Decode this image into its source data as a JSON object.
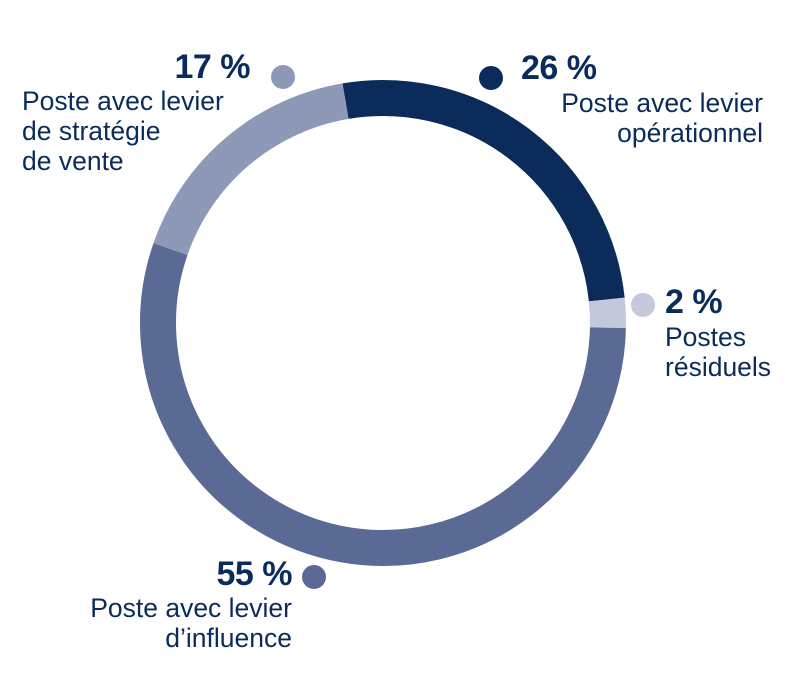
{
  "chart_data": {
    "type": "donut",
    "categories": [
      "Poste avec levier\nopérationnel",
      "Postes\nrésiduels",
      "Poste avec levier\nd’influence",
      "Poste avec levier\nde stratégie\nde vente"
    ],
    "values": [
      26,
      2,
      55,
      17
    ],
    "value_labels": [
      "26 %",
      "2 %",
      "55 %",
      "17 %"
    ],
    "colors": [
      "#0b2c5b",
      "#c3c8da",
      "#5a6a94",
      "#8e99b8"
    ]
  }
}
